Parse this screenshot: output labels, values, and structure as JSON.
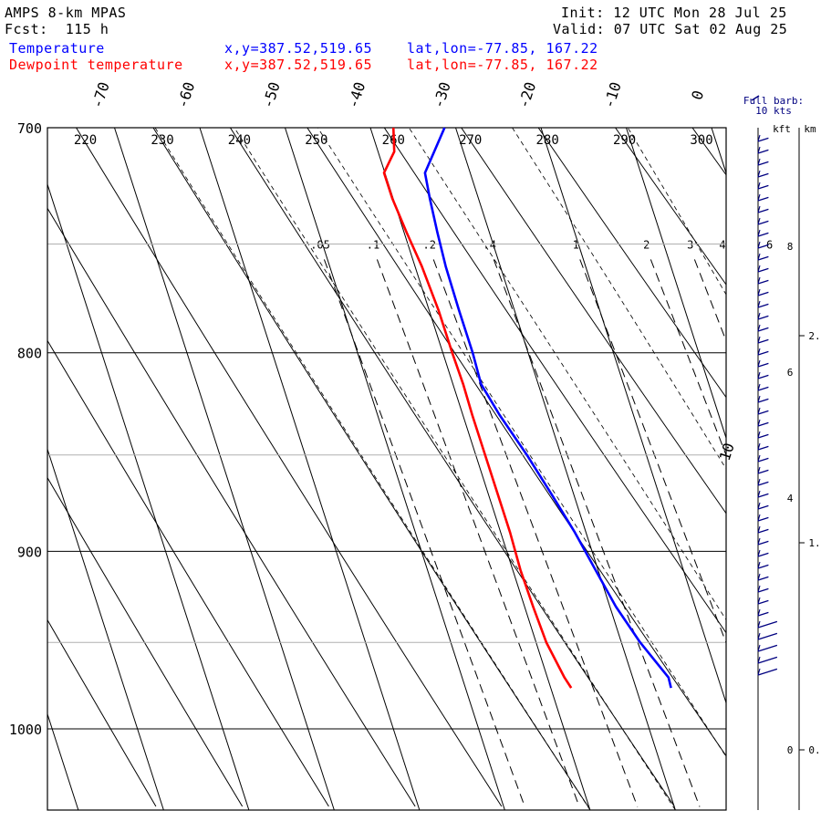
{
  "header": {
    "model": "AMPS 8-km MPAS",
    "fcst_label": "Fcst:",
    "fcst_value": "115 h",
    "init_label": "Init:",
    "init_value": "12 UTC Mon 28 Jul 25",
    "valid_label": "Valid:",
    "valid_value": "07 UTC Sat 02 Aug 25",
    "barb_note_1": "Full barb:",
    "barb_note_2": "10 kts"
  },
  "legend": {
    "temperature": {
      "name": "Temperature",
      "xy": "x,y=387.52,519.65",
      "latlon": "lat,lon=-77.85, 167.22",
      "color": "#0000ff"
    },
    "dewpoint": {
      "name": "Dewpoint temperature",
      "xy": "x,y=387.52,519.65",
      "latlon": "lat,lon=-77.85, 167.22",
      "color": "#ff0000"
    }
  },
  "chart_data": {
    "type": "line",
    "chart_kind": "skew-T log-p diagram",
    "pressure_axis": {
      "unit": "hPa",
      "ticks": [
        700,
        800,
        900,
        1000
      ],
      "range": [
        1040,
        700
      ],
      "scale": "log"
    },
    "temperature_axis": {
      "unit": "C",
      "ticks": [
        -70,
        -60,
        -50,
        -40,
        -30,
        -20,
        -10,
        0
      ],
      "skewed": true
    },
    "isotherm_labels": [
      "-70",
      "-60",
      "-50",
      "-40",
      "-30",
      "-20",
      "-10",
      "0",
      "10"
    ],
    "dry_adiabat_labels": [
      "220",
      "230",
      "240",
      "250",
      "260",
      "270",
      "280",
      "290",
      "300"
    ],
    "mixing_ratio_labels": [
      ".05",
      ".1",
      ".2",
      ".4",
      "1",
      "2",
      "3",
      "4",
      "6"
    ],
    "series": [
      {
        "name": "Temperature",
        "color": "#0000ff",
        "points": [
          [
            976,
            -25.9
          ],
          [
            970,
            -25.8
          ],
          [
            950,
            -27.8
          ],
          [
            930,
            -29.3
          ],
          [
            910,
            -30.3
          ],
          [
            890,
            -31.3
          ],
          [
            870,
            -32.6
          ],
          [
            850,
            -34.0
          ],
          [
            830,
            -35.7
          ],
          [
            815,
            -36.7
          ],
          [
            800,
            -36.5
          ],
          [
            780,
            -36.5
          ],
          [
            760,
            -36.4
          ],
          [
            745,
            -36.1
          ],
          [
            730,
            -35.7
          ],
          [
            719,
            -35.3
          ],
          [
            700,
            -31.3
          ]
        ]
      },
      {
        "name": "Dewpoint temperature",
        "color": "#ff0000",
        "points": [
          [
            976,
            -37.6
          ],
          [
            970,
            -38.0
          ],
          [
            950,
            -38.8
          ],
          [
            930,
            -39.0
          ],
          [
            910,
            -39.1
          ],
          [
            890,
            -38.9
          ],
          [
            870,
            -38.9
          ],
          [
            850,
            -38.9
          ],
          [
            830,
            -38.9
          ],
          [
            815,
            -38.8
          ],
          [
            800,
            -38.9
          ],
          [
            780,
            -38.9
          ],
          [
            760,
            -39.2
          ],
          [
            745,
            -39.7
          ],
          [
            730,
            -40.1
          ],
          [
            719,
            -40.1
          ],
          [
            710,
            -38.1
          ],
          [
            700,
            -37.3
          ]
        ]
      }
    ],
    "wind_axis": {
      "kft_label": "kft",
      "km_label": "km",
      "kft_ticks": [
        {
          "v": 0,
          "t": "0"
        },
        {
          "v": 4,
          "t": "4"
        },
        {
          "v": 6,
          "t": "6"
        },
        {
          "v": 8,
          "t": "8"
        }
      ],
      "km_ticks": [
        {
          "v": 0,
          "t": "0."
        },
        {
          "v": 1,
          "t": "1."
        },
        {
          "v": 2,
          "t": "2."
        }
      ]
    }
  }
}
